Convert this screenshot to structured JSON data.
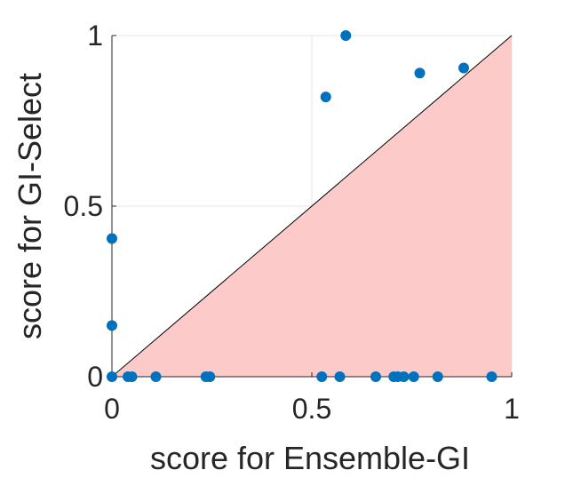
{
  "chart_data": {
    "type": "scatter",
    "title": "",
    "xlabel": "score for Ensemble-GI",
    "ylabel": "score for GI-Select",
    "xlim": [
      0,
      1
    ],
    "ylim": [
      0,
      1
    ],
    "xticks": [
      0,
      0.5,
      1
    ],
    "xtick_labels": [
      "0",
      "0.5",
      "1"
    ],
    "yticks": [
      0,
      0.5,
      1
    ],
    "ytick_labels": [
      "0",
      "0.5",
      "1"
    ],
    "grid": true,
    "diagonal_line": true,
    "shaded_region": "below diagonal",
    "colors": {
      "points": "#0072BD",
      "shade": "#FDCACA",
      "grid": "#E6E6E6",
      "axis": "#262626"
    },
    "series": [
      {
        "points": [
          {
            "x": 0.0,
            "y": 0.0
          },
          {
            "x": 0.0,
            "y": 0.15
          },
          {
            "x": 0.0,
            "y": 0.405
          },
          {
            "x": 0.04,
            "y": 0.0
          },
          {
            "x": 0.05,
            "y": 0.0
          },
          {
            "x": 0.11,
            "y": 0.0
          },
          {
            "x": 0.235,
            "y": 0.0
          },
          {
            "x": 0.245,
            "y": 0.0
          },
          {
            "x": 0.525,
            "y": 0.0
          },
          {
            "x": 0.535,
            "y": 0.82
          },
          {
            "x": 0.57,
            "y": 0.0
          },
          {
            "x": 0.585,
            "y": 1.0
          },
          {
            "x": 0.66,
            "y": 0.0
          },
          {
            "x": 0.705,
            "y": 0.0
          },
          {
            "x": 0.715,
            "y": 0.0
          },
          {
            "x": 0.73,
            "y": 0.0
          },
          {
            "x": 0.755,
            "y": 0.0
          },
          {
            "x": 0.77,
            "y": 0.89
          },
          {
            "x": 0.815,
            "y": 0.0
          },
          {
            "x": 0.88,
            "y": 0.905
          },
          {
            "x": 0.95,
            "y": 0.0
          }
        ]
      }
    ]
  }
}
